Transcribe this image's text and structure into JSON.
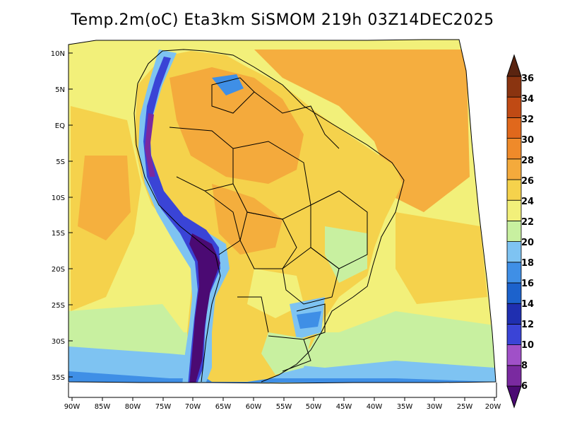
{
  "title": "Temp.2m(oC) Eta3km SiSMOM 219h 03Z14DEC2025",
  "colorbar": {
    "labels": [
      "6",
      "8",
      "10",
      "12",
      "14",
      "16",
      "18",
      "20",
      "22",
      "24",
      "26",
      "28",
      "30",
      "32",
      "34",
      "36"
    ],
    "colors": [
      "#4b0a73",
      "#7a2aa0",
      "#a050c8",
      "#3a44d6",
      "#1f2fb0",
      "#1c62cc",
      "#3f8fe6",
      "#7ec3f2",
      "#c8f0a0",
      "#f2f07a",
      "#f5d24c",
      "#f4aa3c",
      "#ef8a2a",
      "#e0681c",
      "#c04a14",
      "#8a3410",
      "#5a2410"
    ]
  },
  "lat_labels": [
    "10N",
    "5N",
    "EQ",
    "5S",
    "10S",
    "15S",
    "20S",
    "25S",
    "30S",
    "35S"
  ],
  "lon_labels": [
    "90W",
    "85W",
    "80W",
    "75W",
    "70W",
    "65W",
    "60W",
    "55W",
    "50W",
    "45W",
    "40W",
    "35W",
    "30W",
    "25W",
    "20W"
  ],
  "icons": {
    "colorbar_top": "triangle-up-icon",
    "colorbar_bottom": "triangle-down-icon"
  }
}
